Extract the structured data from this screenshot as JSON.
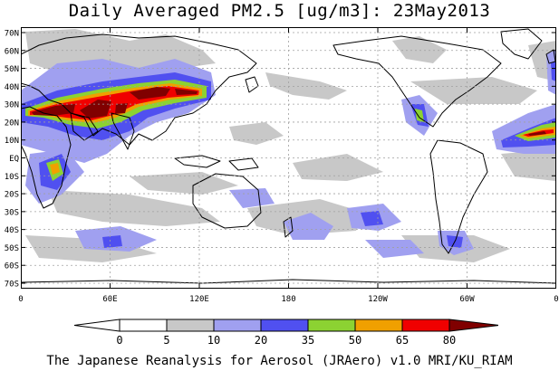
{
  "title": "Daily Averaged PM2.5 [ug/m3]: 23May2013",
  "credit": "The Japanese Reanalysis for Aerosol (JRAero) v1.0 MRI/KU_RIAM",
  "lat_labels": [
    "70N",
    "60N",
    "50N",
    "40N",
    "30N",
    "20N",
    "10N",
    "EQ",
    "10S",
    "20S",
    "30S",
    "40S",
    "50S",
    "60S",
    "70S"
  ],
  "lon_labels": [
    "0",
    "60E",
    "120E",
    "180",
    "120W",
    "60W",
    "0"
  ],
  "colorbar": {
    "ticks": [
      "0",
      "5",
      "10",
      "20",
      "35",
      "50",
      "65",
      "80"
    ],
    "colors": [
      "#ffffff",
      "#c8c8c8",
      "#a0a0f0",
      "#5050f0",
      "#8cd232",
      "#f0a000",
      "#f00000",
      "#800000"
    ]
  },
  "palette": {
    "c5": "#c8c8c8",
    "c10": "#a0a0f0",
    "c20": "#5050f0",
    "c35": "#8cd232",
    "c50": "#f0a000",
    "c65": "#f00000",
    "c80": "#800000"
  }
}
